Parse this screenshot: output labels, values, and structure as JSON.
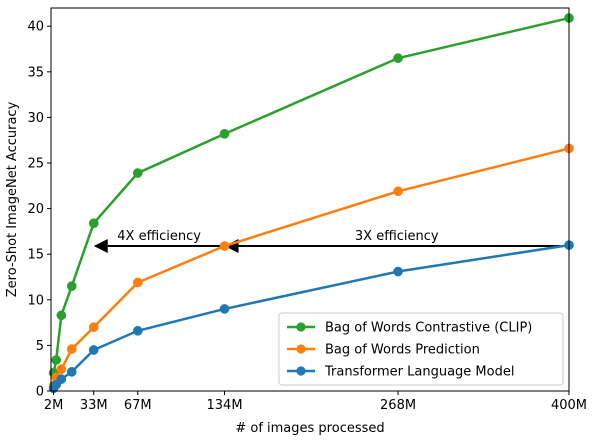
{
  "chart_data": {
    "type": "line",
    "title": "",
    "xlabel": "# of images processed",
    "ylabel": "Zero-Shot ImageNet Accuracy",
    "xlim": [
      0,
      400
    ],
    "ylim": [
      0,
      42
    ],
    "grid": false,
    "legend_position": "bottom-right",
    "x_ticks": [
      {
        "value": 2,
        "label": "2M"
      },
      {
        "value": 33,
        "label": "33M"
      },
      {
        "value": 67,
        "label": "67M"
      },
      {
        "value": 134,
        "label": "134M"
      },
      {
        "value": 268,
        "label": "268M"
      },
      {
        "value": 400,
        "label": "400M"
      }
    ],
    "y_ticks": [
      {
        "value": 0,
        "label": "0"
      },
      {
        "value": 5,
        "label": "5"
      },
      {
        "value": 10,
        "label": "10"
      },
      {
        "value": 15,
        "label": "15"
      },
      {
        "value": 20,
        "label": "20"
      },
      {
        "value": 25,
        "label": "25"
      },
      {
        "value": 30,
        "label": "30"
      },
      {
        "value": 35,
        "label": "35"
      },
      {
        "value": 40,
        "label": "40"
      }
    ],
    "series": [
      {
        "name": "Bag of Words Contrastive (CLIP)",
        "color": "#2ca02c",
        "x": [
          2,
          4,
          8,
          16,
          33,
          67,
          134,
          268,
          400
        ],
        "y": [
          2.0,
          3.4,
          8.3,
          11.5,
          18.4,
          23.9,
          28.2,
          36.5,
          40.9
        ]
      },
      {
        "name": "Bag of Words Prediction",
        "color": "#ff7f0e",
        "x": [
          2,
          4,
          8,
          16,
          33,
          67,
          134,
          268,
          400
        ],
        "y": [
          0.6,
          1.5,
          2.4,
          4.6,
          7.0,
          11.9,
          15.9,
          21.9,
          26.6
        ]
      },
      {
        "name": "Transformer Language Model",
        "color": "#1f77b4",
        "x": [
          2,
          4,
          8,
          16,
          33,
          67,
          134,
          268,
          400
        ],
        "y": [
          0.3,
          0.7,
          1.3,
          2.1,
          4.5,
          6.6,
          9.0,
          13.1,
          16.0
        ]
      }
    ],
    "annotations": [
      {
        "text": "4X efficiency",
        "from": {
          "x": 134,
          "y": 15.9
        },
        "to": {
          "x": 33,
          "y": 15.9
        }
      },
      {
        "text": "3X efficiency",
        "from": {
          "x": 400,
          "y": 15.9
        },
        "to": {
          "x": 134,
          "y": 15.9
        }
      }
    ]
  }
}
